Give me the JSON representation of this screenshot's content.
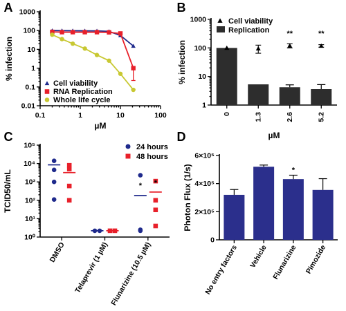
{
  "chart_data": [
    {
      "panel": "A",
      "type": "line",
      "xscale": "log",
      "yscale": "log",
      "xlabel": "µM",
      "ylabel": "% infection",
      "xlim": [
        0.1,
        100
      ],
      "ylim": [
        0.01,
        1000
      ],
      "xticks": [
        "0.1",
        "1",
        "10",
        "100"
      ],
      "yticks": [
        "0.01",
        "0.1",
        "1",
        "10",
        "100",
        "1000"
      ],
      "legend_position": "bottom-left",
      "series": [
        {
          "name": "Cell viability",
          "color": "#1f2a8c",
          "marker": "triangle",
          "x": [
            0.2,
            0.35,
            0.65,
            1.3,
            2.6,
            5.2,
            10,
            21
          ],
          "y": [
            100,
            99,
            98,
            97,
            96,
            90,
            55,
            15
          ]
        },
        {
          "name": "RNA Replication",
          "color": "#e8202a",
          "marker": "square",
          "x": [
            0.2,
            0.35,
            0.65,
            1.3,
            2.6,
            5.2,
            10,
            21
          ],
          "y": [
            85,
            82,
            82,
            82,
            82,
            80,
            70,
            1.0
          ]
        },
        {
          "name": "Whole life cycle",
          "color": "#c8c832",
          "marker": "circle",
          "x": [
            0.2,
            0.35,
            0.65,
            1.3,
            2.6,
            5.2,
            10,
            21
          ],
          "y": [
            60,
            35,
            20,
            11,
            5,
            2.5,
            0.5,
            0.07
          ]
        }
      ]
    },
    {
      "panel": "B",
      "type": "bar",
      "yscale": "log",
      "xlabel": "µM",
      "ylabel": "% infection",
      "ylim": [
        1,
        1000
      ],
      "yticks": [
        "1",
        "10",
        "100",
        "1000"
      ],
      "categories": [
        "0",
        "1.3",
        "2.6",
        "5.2"
      ],
      "legend_position": "top-right",
      "series": [
        {
          "name": "Replication",
          "color": "#2d2d2d",
          "type": "bar",
          "values": [
            100,
            5.3,
            4.2,
            3.6
          ],
          "errors": [
            0,
            0,
            0.9,
            1.6
          ]
        },
        {
          "name": "Cell viability",
          "color": "#000000",
          "type": "point",
          "marker": "triangle",
          "values": [
            100,
            95,
            120,
            118
          ],
          "errors": [
            0,
            30,
            20,
            12
          ]
        }
      ],
      "annotations": [
        "**",
        "**"
      ]
    },
    {
      "panel": "C",
      "type": "scatter",
      "yscale": "log",
      "ylabel": "TCID50/mL",
      "ylim": [
        1,
        100000
      ],
      "yticks": [
        "10⁰",
        "10¹",
        "10²",
        "10³",
        "10⁴",
        "10⁵"
      ],
      "categories": [
        "DMSO",
        "Telaprevir (1 µM)",
        "Flunarizine (10.5 µM)"
      ],
      "legend_position": "top-right",
      "series": [
        {
          "name": "24 hours",
          "color": "#1f2a8c",
          "marker": "circle",
          "points": [
            [
              0,
              14000
            ],
            [
              0,
              4500
            ],
            [
              0,
              1000
            ],
            [
              0,
              110
            ],
            [
              1,
              2.2
            ],
            [
              1,
              2.2
            ],
            [
              2,
              2300
            ],
            [
              2,
              2.2
            ],
            [
              2,
              2.5
            ]
          ],
          "means": [
            8500,
            2.2,
            180
          ]
        },
        {
          "name": "48 hours",
          "color": "#e8202a",
          "marker": "square",
          "points": [
            [
              0,
              8000
            ],
            [
              0,
              5000
            ],
            [
              0,
              600
            ],
            [
              0,
              100
            ],
            [
              1,
              2.2
            ],
            [
              1,
              2.2
            ],
            [
              2,
              1100
            ],
            [
              2,
              100
            ],
            [
              2,
              30
            ],
            [
              2,
              4
            ]
          ],
          "means": [
            3200,
            2.2,
            280
          ]
        }
      ],
      "annotations": [
        "*",
        "*"
      ]
    },
    {
      "panel": "D",
      "type": "bar",
      "ylabel": "Photon Flux (1/s)",
      "ylim": [
        0,
        600000
      ],
      "yticks": [
        "0",
        "2×10⁵",
        "4×10⁵",
        "6×10⁵"
      ],
      "categories": [
        "No entry factors",
        "Vehicle",
        "Flunarizine",
        "Pimozide"
      ],
      "series": [
        {
          "name": "Photon Flux",
          "color": "#2b2f8c",
          "values": [
            320000,
            520000,
            432000,
            355000
          ],
          "errors": [
            38000,
            12000,
            28000,
            80000
          ]
        }
      ],
      "annotations": [
        "*"
      ]
    }
  ]
}
